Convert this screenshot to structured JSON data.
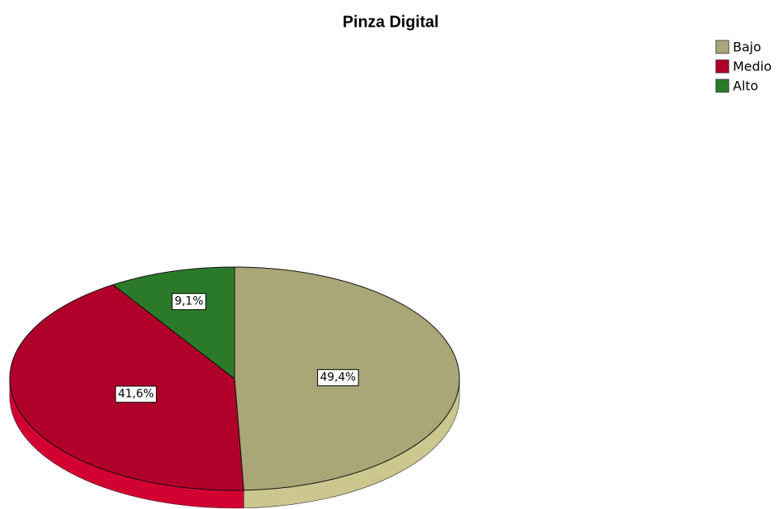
{
  "chart_data": {
    "type": "pie",
    "title": "Pinza Digital",
    "categories": [
      "Bajo",
      "Medio",
      "Alto"
    ],
    "values": [
      49.4,
      41.6,
      9.1
    ],
    "value_labels": [
      "49,4%",
      "41,6%",
      "9,1%"
    ],
    "colors": [
      "#a9a677",
      "#b0002a",
      "#2a7a2a"
    ],
    "legend": "top-right"
  }
}
